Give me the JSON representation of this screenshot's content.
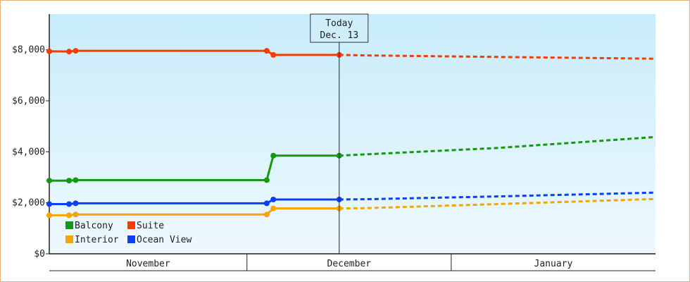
{
  "chart_data": {
    "type": "line",
    "y_axis": {
      "ylim": [
        0,
        9400
      ],
      "ticks": [
        0,
        2000,
        4000,
        6000,
        8000
      ],
      "tick_labels": [
        "$0",
        "$2,000",
        "$4,000",
        "$6,000",
        "$8,000"
      ]
    },
    "x_axis": {
      "start": "2023-10-30",
      "end": "2024-01-30",
      "months": [
        {
          "label": "November",
          "start": "2023-10-30",
          "end": "2023-11-29"
        },
        {
          "label": "December",
          "start": "2023-11-29",
          "end": "2023-12-30"
        },
        {
          "label": "January",
          "start": "2023-12-30",
          "end": "2024-01-30"
        }
      ]
    },
    "today": {
      "line1": "Today",
      "line2": "Dec. 13",
      "date": "2023-12-13"
    },
    "legend": {
      "placement": "bottom-left"
    },
    "colors": {
      "Balcony": "#129a12",
      "Suite": "#f33c08",
      "Interior": "#f5a50a",
      "Ocean View": "#0a3ff2"
    },
    "series": [
      {
        "name": "Suite",
        "points": [
          [
            "2023-10-30",
            7940
          ],
          [
            "2023-11-02",
            7930
          ],
          [
            "2023-11-03",
            7960
          ],
          [
            "2023-12-02",
            7960
          ],
          [
            "2023-12-03",
            7800
          ],
          [
            "2023-12-13",
            7800
          ]
        ],
        "forecast": [
          [
            "2023-12-13",
            7800
          ],
          [
            "2023-12-17",
            7780
          ],
          [
            "2024-01-06",
            7720
          ],
          [
            "2024-01-30",
            7650
          ]
        ]
      },
      {
        "name": "Balcony",
        "points": [
          [
            "2023-10-30",
            2870
          ],
          [
            "2023-11-02",
            2870
          ],
          [
            "2023-11-03",
            2890
          ],
          [
            "2023-12-02",
            2890
          ],
          [
            "2023-12-03",
            3850
          ],
          [
            "2023-12-13",
            3850
          ]
        ],
        "forecast": [
          [
            "2023-12-13",
            3850
          ],
          [
            "2023-12-17",
            3900
          ],
          [
            "2024-01-06",
            4150
          ],
          [
            "2024-01-30",
            4580
          ]
        ]
      },
      {
        "name": "Ocean View",
        "points": [
          [
            "2023-10-30",
            1950
          ],
          [
            "2023-11-02",
            1950
          ],
          [
            "2023-11-03",
            1980
          ],
          [
            "2023-12-02",
            1980
          ],
          [
            "2023-12-03",
            2130
          ],
          [
            "2023-12-13",
            2130
          ]
        ],
        "forecast": [
          [
            "2023-12-13",
            2130
          ],
          [
            "2023-12-17",
            2140
          ],
          [
            "2024-01-06",
            2250
          ],
          [
            "2024-01-30",
            2400
          ]
        ]
      },
      {
        "name": "Interior",
        "points": [
          [
            "2023-10-30",
            1510
          ],
          [
            "2023-11-02",
            1510
          ],
          [
            "2023-11-03",
            1540
          ],
          [
            "2023-12-02",
            1540
          ],
          [
            "2023-12-03",
            1780
          ],
          [
            "2023-12-13",
            1780
          ]
        ],
        "forecast": [
          [
            "2023-12-13",
            1780
          ],
          [
            "2023-12-17",
            1790
          ],
          [
            "2024-01-06",
            1950
          ],
          [
            "2024-01-30",
            2150
          ]
        ]
      }
    ],
    "legend_entries": [
      "Balcony",
      "Suite",
      "Interior",
      "Ocean View"
    ]
  }
}
